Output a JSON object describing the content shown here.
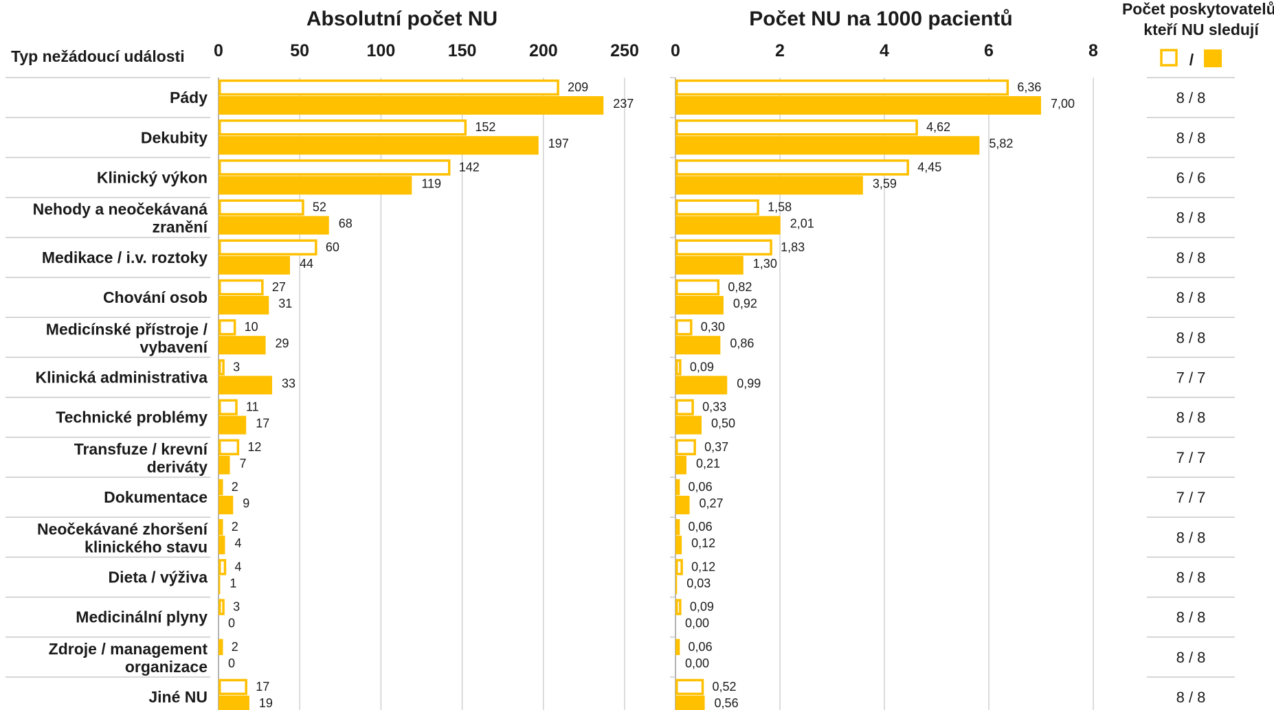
{
  "chart_data": [
    {
      "type": "bar",
      "orientation": "horizontal",
      "title": "Absolutní počet NU",
      "xlim": [
        0,
        250
      ],
      "ticks": [
        "0",
        "50",
        "100",
        "150",
        "200",
        "250"
      ],
      "tick_values": [
        0,
        50,
        100,
        150,
        200,
        250
      ],
      "grid": true,
      "series": [
        {
          "style": "outline",
          "color": "#FFC000",
          "values": [
            209,
            152,
            142,
            52,
            60,
            27,
            10,
            3,
            11,
            12,
            2,
            2,
            4,
            3,
            2,
            17
          ],
          "labels": [
            "209",
            "152",
            "142",
            "52",
            "60",
            "27",
            "10",
            "3",
            "11",
            "12",
            "2",
            "2",
            "4",
            "3",
            "2",
            "17"
          ]
        },
        {
          "style": "filled",
          "color": "#FFC000",
          "values": [
            237,
            197,
            119,
            68,
            44,
            31,
            29,
            33,
            17,
            7,
            9,
            4,
            1,
            0,
            0,
            19
          ],
          "labels": [
            "237",
            "197",
            "119",
            "68",
            "44",
            "31",
            "29",
            "33",
            "17",
            "7",
            "9",
            "4",
            "1",
            "0",
            "0",
            "19"
          ]
        }
      ]
    },
    {
      "type": "bar",
      "orientation": "horizontal",
      "title": "Počet NU na 1000 pacientů",
      "xlim": [
        0,
        8
      ],
      "ticks": [
        "0",
        "2",
        "4",
        "6",
        "8"
      ],
      "tick_values": [
        0,
        2,
        4,
        6,
        8
      ],
      "grid": true,
      "series": [
        {
          "style": "outline",
          "color": "#FFC000",
          "values": [
            6.36,
            4.62,
            4.45,
            1.58,
            1.83,
            0.82,
            0.3,
            0.09,
            0.33,
            0.37,
            0.06,
            0.06,
            0.12,
            0.09,
            0.06,
            0.52
          ],
          "labels": [
            "6,36",
            "4,62",
            "4,45",
            "1,58",
            "1,83",
            "0,82",
            "0,30",
            "0,09",
            "0,33",
            "0,37",
            "0,06",
            "0,06",
            "0,12",
            "0,09",
            "0,06",
            "0,52"
          ]
        },
        {
          "style": "filled",
          "color": "#FFC000",
          "values": [
            7.0,
            5.82,
            3.59,
            2.01,
            1.3,
            0.92,
            0.86,
            0.99,
            0.5,
            0.21,
            0.27,
            0.12,
            0.03,
            0.0,
            0.0,
            0.56
          ],
          "labels": [
            "7,00",
            "5,82",
            "3,59",
            "2,01",
            "1,30",
            "0,92",
            "0,86",
            "0,99",
            "0,50",
            "0,21",
            "0,27",
            "0,12",
            "0,03",
            "0,00",
            "0,00",
            "0,56"
          ]
        }
      ]
    }
  ],
  "category_header": "Typ nežádoucí události",
  "categories": [
    [
      "Pády"
    ],
    [
      "Dekubity"
    ],
    [
      "Klinický výkon"
    ],
    [
      "Nehody a neočekávaná",
      "zranění"
    ],
    [
      "Medikace / i.v. roztoky"
    ],
    [
      "Chování osob"
    ],
    [
      "Medicínské přístroje /",
      "vybavení"
    ],
    [
      "Klinická administrativa"
    ],
    [
      "Technické problémy"
    ],
    [
      "Transfuze / krevní",
      "deriváty"
    ],
    [
      "Dokumentace"
    ],
    [
      "Neočekávané zhoršení",
      "klinického stavu"
    ],
    [
      "Dieta / výživa"
    ],
    [
      "Medicinální plyny"
    ],
    [
      "Zdroje / management",
      "organizace"
    ],
    [
      "Jiné NU"
    ]
  ],
  "providers": {
    "header_line1": "Počet poskytovatelů,",
    "header_line2": "kteří NU sledují",
    "legend_separator": "/",
    "values": [
      "8 / 8",
      "8 / 8",
      "6 / 6",
      "8 / 8",
      "8 / 8",
      "8 / 8",
      "8 / 8",
      "7 / 7",
      "8 / 8",
      "7 / 7",
      "7 / 7",
      "8 / 8",
      "8 / 8",
      "8 / 8",
      "8 / 8",
      "8 / 8"
    ]
  },
  "colors": {
    "accent": "#FFC000"
  }
}
